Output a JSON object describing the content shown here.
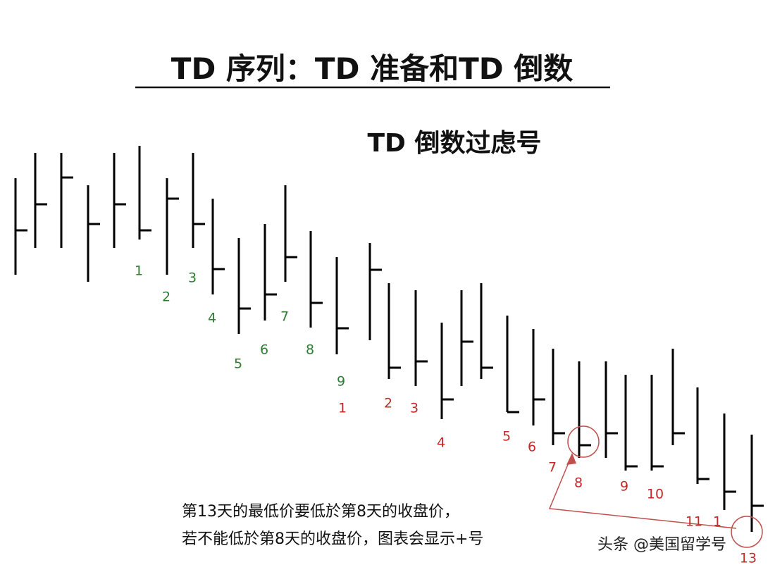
{
  "header": {
    "title": "TD 序列：TD 准备和TD 倒数",
    "subtitle": "TD 倒数过虑号"
  },
  "setup_labels": [
    "1",
    "2",
    "3",
    "4",
    "5",
    "6",
    "7",
    "8",
    "9"
  ],
  "countdown_labels": [
    "1",
    "2",
    "3",
    "4",
    "5",
    "6",
    "7",
    "8",
    "9",
    "10",
    "11",
    "1",
    "13"
  ],
  "note": [
    "第13天的最低价要低於第8天的收盘价，",
    "若不能低於第8天的收盘价，图表会显示+号"
  ],
  "watermark": "头条 @美国留学号"
}
